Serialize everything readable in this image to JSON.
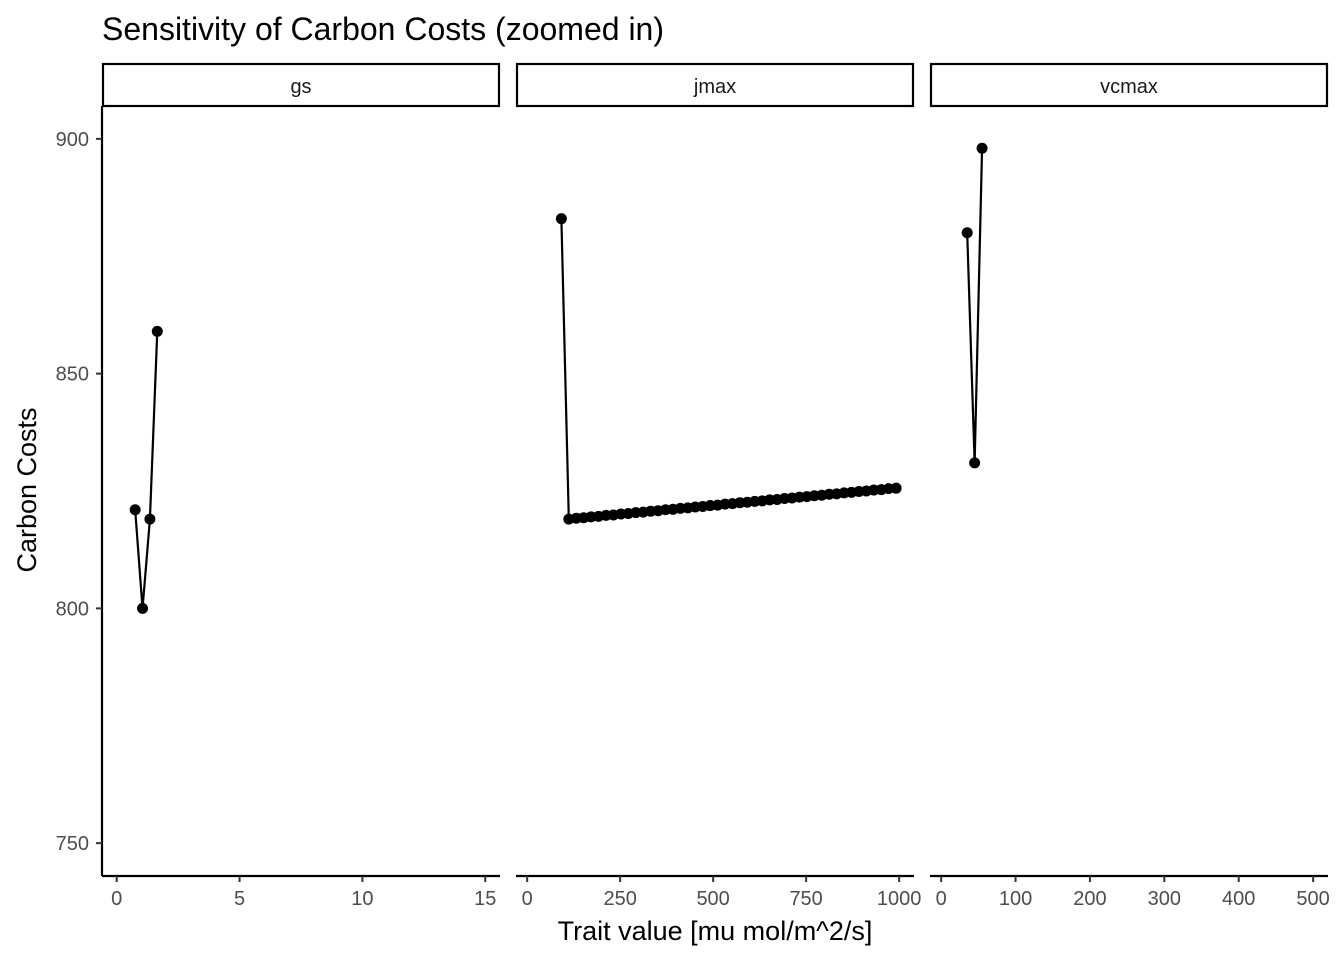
{
  "chart_data": {
    "type": "line",
    "title": "Sensitivity of Carbon Costs (zoomed in)",
    "xlabel": "Trait value [mu mol/m^2/s]",
    "ylabel": "Carbon Costs",
    "ylim": [
      743,
      907
    ],
    "y_ticks": [
      750,
      800,
      850,
      900
    ],
    "grid": false,
    "markers": "points",
    "facets": [
      {
        "name": "gs",
        "xlim": [
          -0.6,
          15.6
        ],
        "x_ticks": [
          0,
          5,
          10,
          15
        ],
        "points": [
          {
            "x": 0.75,
            "y": 821
          },
          {
            "x": 1.05,
            "y": 800
          },
          {
            "x": 1.35,
            "y": 819
          },
          {
            "x": 1.65,
            "y": 859
          }
        ]
      },
      {
        "name": "jmax",
        "xlim": [
          -30,
          1040
        ],
        "x_ticks": [
          0,
          250,
          500,
          750,
          1000
        ],
        "points": [
          {
            "x": 92,
            "y": 883
          },
          {
            "x": 112,
            "y": 819
          },
          {
            "x": 132,
            "y": 819.2
          },
          {
            "x": 152,
            "y": 819.3
          },
          {
            "x": 172,
            "y": 819.5
          },
          {
            "x": 192,
            "y": 819.6
          },
          {
            "x": 212,
            "y": 819.8
          },
          {
            "x": 232,
            "y": 819.9
          },
          {
            "x": 252,
            "y": 820.1
          },
          {
            "x": 272,
            "y": 820.2
          },
          {
            "x": 292,
            "y": 820.4
          },
          {
            "x": 312,
            "y": 820.5
          },
          {
            "x": 332,
            "y": 820.7
          },
          {
            "x": 352,
            "y": 820.8
          },
          {
            "x": 372,
            "y": 821
          },
          {
            "x": 392,
            "y": 821.1
          },
          {
            "x": 412,
            "y": 821.3
          },
          {
            "x": 432,
            "y": 821.4
          },
          {
            "x": 452,
            "y": 821.6
          },
          {
            "x": 472,
            "y": 821.7
          },
          {
            "x": 492,
            "y": 821.9
          },
          {
            "x": 512,
            "y": 822
          },
          {
            "x": 532,
            "y": 822.2
          },
          {
            "x": 552,
            "y": 822.3
          },
          {
            "x": 572,
            "y": 822.5
          },
          {
            "x": 592,
            "y": 822.6
          },
          {
            "x": 612,
            "y": 822.8
          },
          {
            "x": 632,
            "y": 822.9
          },
          {
            "x": 652,
            "y": 823.1
          },
          {
            "x": 672,
            "y": 823.2
          },
          {
            "x": 692,
            "y": 823.4
          },
          {
            "x": 712,
            "y": 823.5
          },
          {
            "x": 732,
            "y": 823.7
          },
          {
            "x": 752,
            "y": 823.8
          },
          {
            "x": 772,
            "y": 824
          },
          {
            "x": 792,
            "y": 824.1
          },
          {
            "x": 812,
            "y": 824.3
          },
          {
            "x": 832,
            "y": 824.4
          },
          {
            "x": 852,
            "y": 824.6
          },
          {
            "x": 872,
            "y": 824.7
          },
          {
            "x": 892,
            "y": 824.9
          },
          {
            "x": 912,
            "y": 825
          },
          {
            "x": 932,
            "y": 825.2
          },
          {
            "x": 952,
            "y": 825.3
          },
          {
            "x": 972,
            "y": 825.5
          },
          {
            "x": 992,
            "y": 825.6
          }
        ]
      },
      {
        "name": "vcmax",
        "xlim": [
          -15,
          520
        ],
        "x_ticks": [
          0,
          100,
          200,
          300,
          400,
          500
        ],
        "points": [
          {
            "x": 35,
            "y": 880
          },
          {
            "x": 45,
            "y": 831
          },
          {
            "x": 55,
            "y": 898
          }
        ]
      }
    ]
  }
}
